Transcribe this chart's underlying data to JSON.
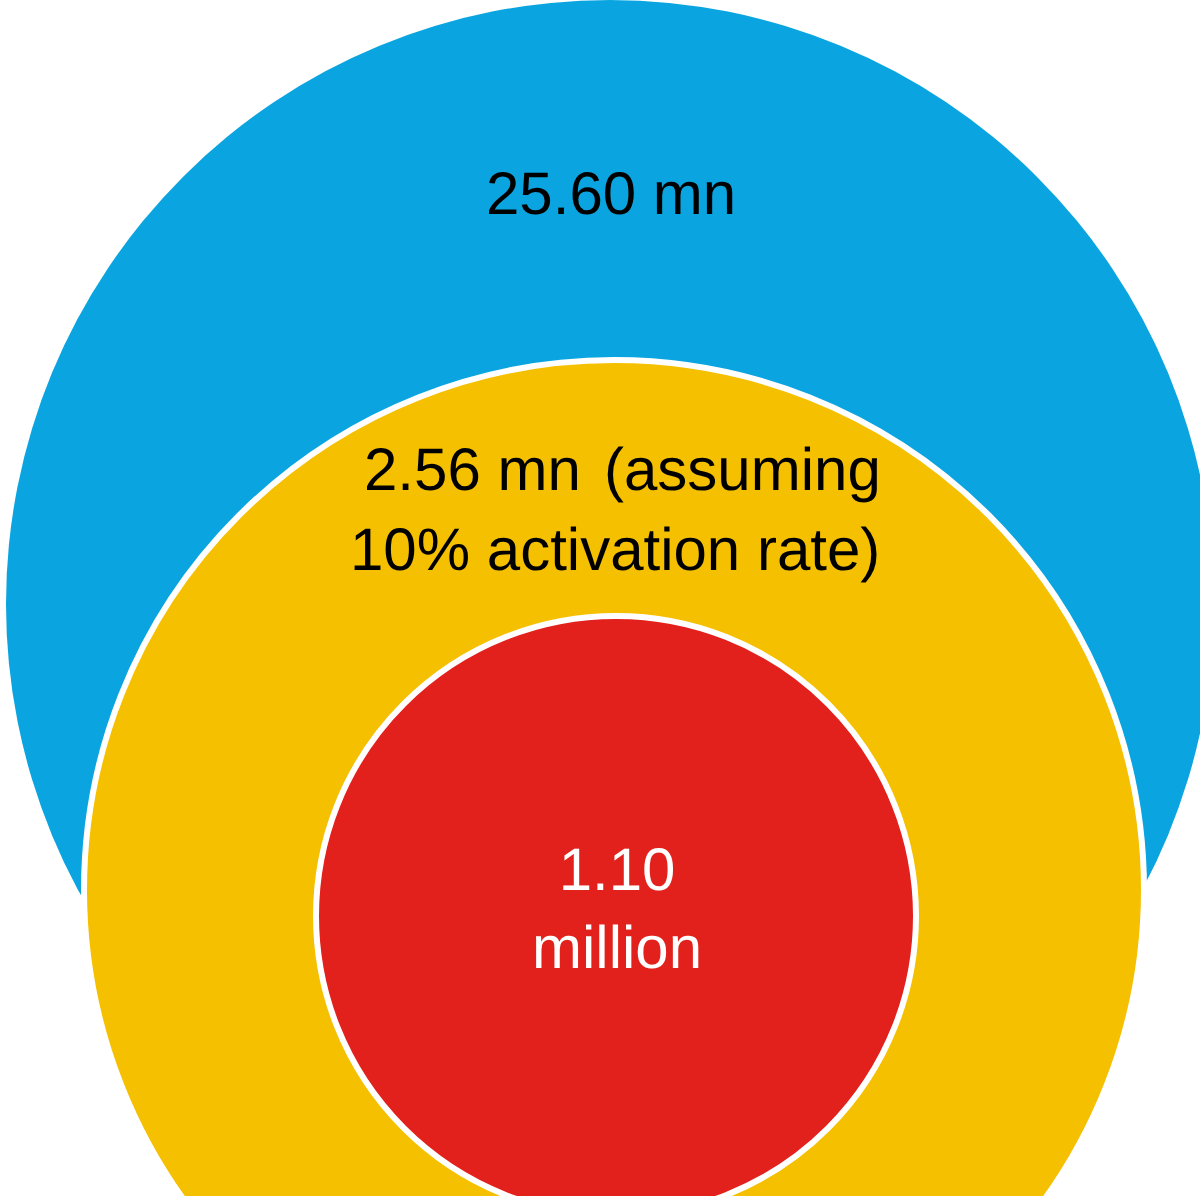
{
  "chart_data": {
    "type": "other",
    "categories": [
      null,
      null,
      null
    ],
    "values": [
      25600000,
      2560000,
      1100000
    ],
    "value_labels": [
      "25.60 mn",
      "2.56 mn",
      "1.10\nmillion"
    ],
    "annotations": [
      "(assuming\n10% activation rate)"
    ],
    "colors": [
      "#0aa5e0",
      "#f5c000",
      "#e2201c"
    ]
  }
}
